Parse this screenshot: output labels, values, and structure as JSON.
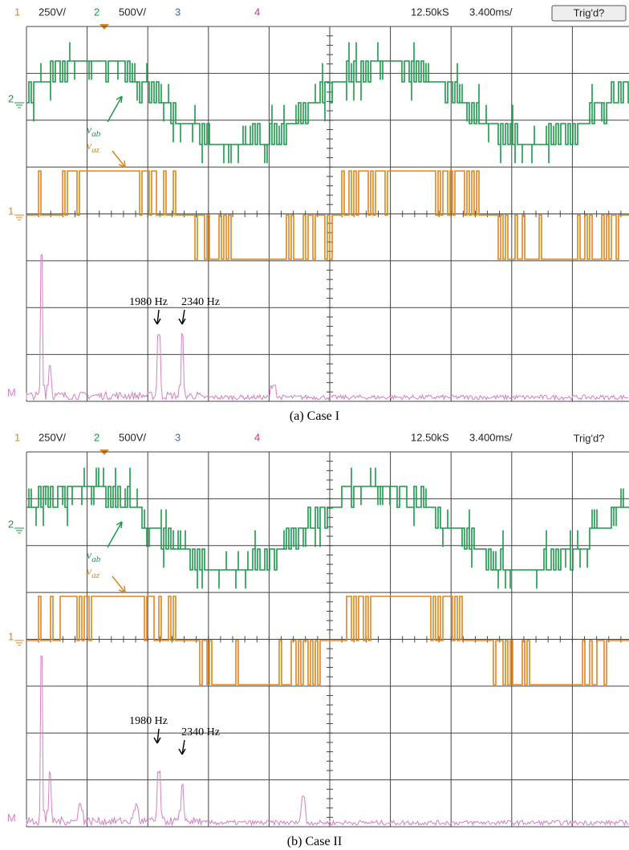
{
  "panels": [
    {
      "header": {
        "ch1": "1",
        "ch1_scale": "250V/",
        "ch2": "2",
        "ch2_scale": "500V/",
        "ch3": "3",
        "ch4": "4",
        "sample_rate": "12.50kS",
        "time_scale": "3.400ms/",
        "trigger": "Trig'd?"
      },
      "markers": {
        "ch2": "2",
        "ch1": "1",
        "math": "M"
      },
      "v_ab": {
        "symbol": "v",
        "subscript": "ab"
      },
      "v_az": {
        "symbol": "v",
        "subscript": "az"
      },
      "annotations": [
        "1980 Hz",
        "2340 Hz"
      ],
      "caption": "(a) Case I"
    },
    {
      "header": {
        "ch1": "1",
        "ch1_scale": "250V/",
        "ch2": "2",
        "ch2_scale": "500V/",
        "ch3": "3",
        "ch4": "4",
        "sample_rate": "12.50kS",
        "time_scale": "3.400ms/",
        "trigger": "Trig'd?"
      },
      "markers": {
        "ch2": "2",
        "ch1": "1",
        "math": "M"
      },
      "v_ab": {
        "symbol": "v",
        "subscript": "ab"
      },
      "v_az": {
        "symbol": "v",
        "subscript": "az"
      },
      "annotations": [
        "1980 Hz",
        "2340 Hz"
      ],
      "caption": "(b) Case II"
    }
  ]
}
